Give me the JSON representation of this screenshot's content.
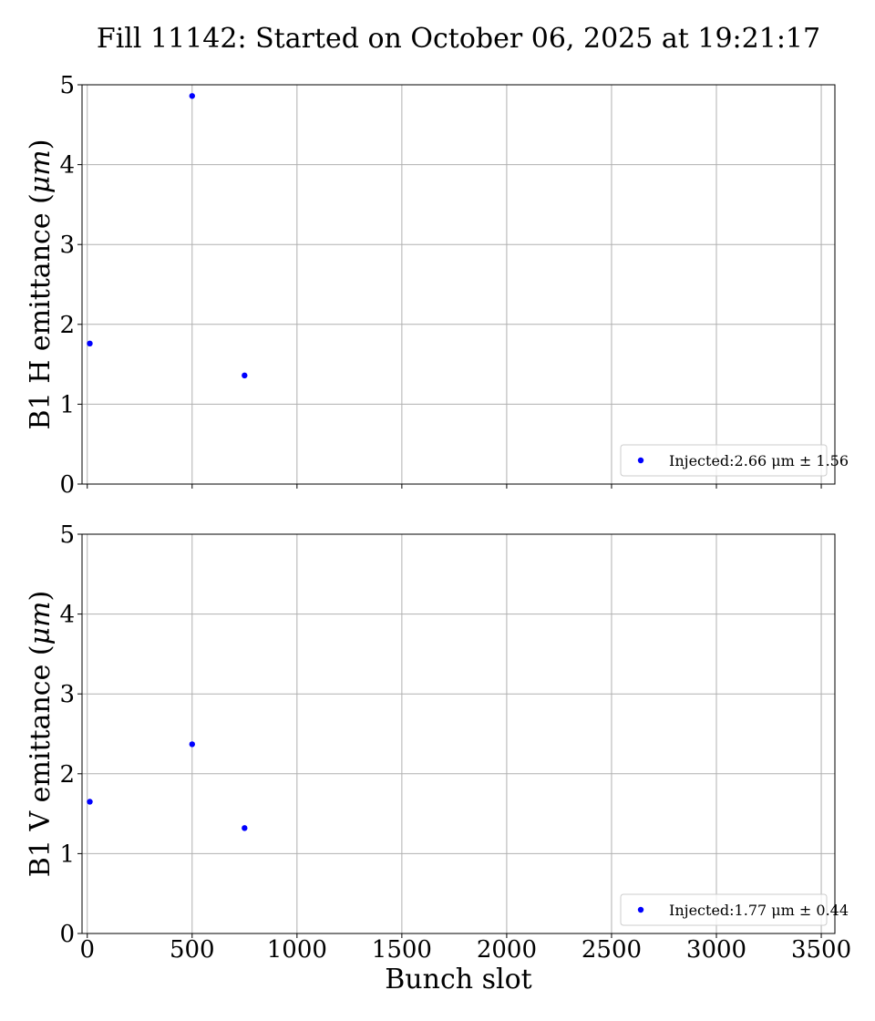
{
  "chart_data": [
    {
      "type": "scatter",
      "title": "Fill 11142: Started on October 06, 2025 at 19:21:17",
      "ylabel_text": "B1 H emittance (",
      "ylabel_unit": "μm",
      "ylabel_close": ")",
      "xlabel": "",
      "xlim": [
        -25,
        3565
      ],
      "ylim": [
        0,
        5
      ],
      "xticks": [
        0,
        500,
        1000,
        1500,
        2000,
        2500,
        3000,
        3500
      ],
      "yticks": [
        0,
        1,
        2,
        3,
        4,
        5
      ],
      "show_x_tick_labels": false,
      "grid": true,
      "legend_placement": "lower-right",
      "series": [
        {
          "name": "Injected:2.66 μm ± 1.56",
          "color": "#0000ff",
          "x": [
            12,
            500,
            750
          ],
          "y": [
            1.76,
            4.86,
            1.36
          ]
        }
      ]
    },
    {
      "type": "scatter",
      "ylabel_text": "B1 V emittance (",
      "ylabel_unit": "μm",
      "ylabel_close": ")",
      "xlabel": "Bunch slot",
      "xlim": [
        -25,
        3565
      ],
      "ylim": [
        0,
        5
      ],
      "xticks": [
        0,
        500,
        1000,
        1500,
        2000,
        2500,
        3000,
        3500
      ],
      "yticks": [
        0,
        1,
        2,
        3,
        4,
        5
      ],
      "show_x_tick_labels": true,
      "grid": true,
      "legend_placement": "lower-right",
      "series": [
        {
          "name": "Injected:1.77 μm ± 0.44",
          "color": "#0000ff",
          "x": [
            12,
            500,
            750
          ],
          "y": [
            1.65,
            2.37,
            1.32
          ]
        }
      ]
    }
  ]
}
